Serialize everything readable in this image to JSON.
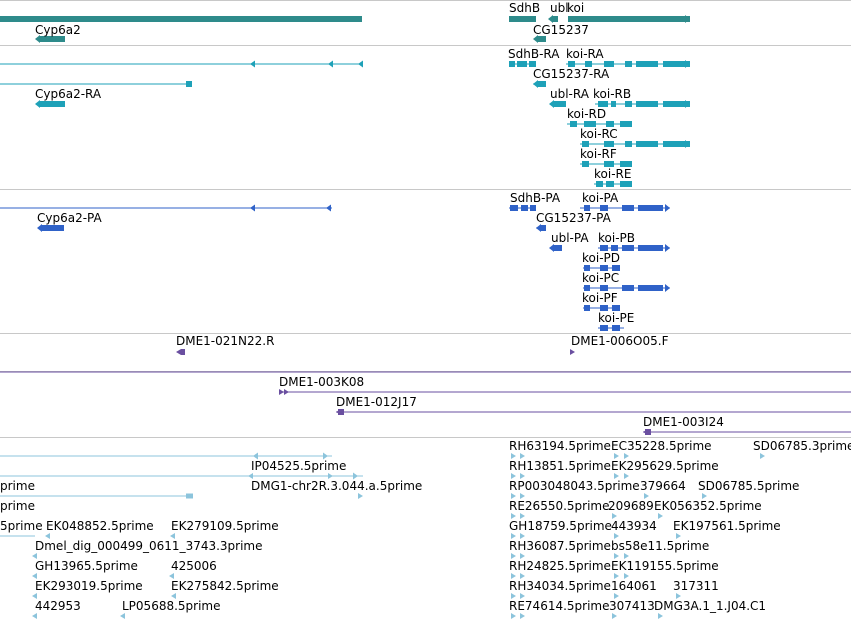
{
  "colors": {
    "gene": "#2e8b8b",
    "transcript": "#1ea1b8",
    "protein": "#2f62c8",
    "clone": "#6a4fa0",
    "est": "#8cc4dc",
    "divider": "#c8c8c8"
  },
  "tracks": {
    "genes": {
      "features": [
        {
          "id": "g-top",
          "label": ""
        },
        {
          "id": "g-cyp6a2",
          "label": "Cyp6a2"
        },
        {
          "id": "g-sdhb",
          "label": "SdhB"
        },
        {
          "id": "g-ubl",
          "label": "ubl"
        },
        {
          "id": "g-koi",
          "label": "koi"
        },
        {
          "id": "g-cg15237",
          "label": "CG15237"
        }
      ]
    },
    "transcripts": {
      "features": [
        {
          "id": "t-long1",
          "label": ""
        },
        {
          "id": "t-long2",
          "label": ""
        },
        {
          "id": "t-cyp6a2",
          "label": "Cyp6a2-RA"
        },
        {
          "id": "t-sdhb",
          "label": "SdhB-RA"
        },
        {
          "id": "t-koira",
          "label": "koi-RA"
        },
        {
          "id": "t-cg15237",
          "label": "CG15237-RA"
        },
        {
          "id": "t-ublra",
          "label": "ubl-RA"
        },
        {
          "id": "t-koirb",
          "label": "koi-RB"
        },
        {
          "id": "t-koird",
          "label": "koi-RD"
        },
        {
          "id": "t-koirc",
          "label": "koi-RC"
        },
        {
          "id": "t-koirf",
          "label": "koi-RF"
        },
        {
          "id": "t-koire",
          "label": "koi-RE"
        }
      ]
    },
    "proteins": {
      "features": [
        {
          "id": "p-long",
          "label": ""
        },
        {
          "id": "p-cyp6a2",
          "label": "Cyp6a2-PA"
        },
        {
          "id": "p-sdhb",
          "label": "SdhB-PA"
        },
        {
          "id": "p-koipa",
          "label": "koi-PA"
        },
        {
          "id": "p-cg15237",
          "label": "CG15237-PA"
        },
        {
          "id": "p-ublpa",
          "label": "ubl-PA"
        },
        {
          "id": "p-koipb",
          "label": "koi-PB"
        },
        {
          "id": "p-koipd",
          "label": "koi-PD"
        },
        {
          "id": "p-koipc",
          "label": "koi-PC"
        },
        {
          "id": "p-koipf",
          "label": "koi-PF"
        },
        {
          "id": "p-koipe",
          "label": "koi-PE"
        }
      ]
    },
    "clone_ends": {
      "features": [
        {
          "id": "c1",
          "label": "DME1-021N22.R"
        },
        {
          "id": "c2",
          "label": "DME1-006O05.F"
        }
      ]
    },
    "clones": {
      "features": [
        {
          "id": "cl-top",
          "label": ""
        },
        {
          "id": "cl1",
          "label": "DME1-003K08"
        },
        {
          "id": "cl2",
          "label": "DME1-012J17"
        },
        {
          "id": "cl3",
          "label": "DME1-003I24"
        }
      ]
    },
    "ests": {
      "features": [
        {
          "id": "e-l1",
          "label": ""
        },
        {
          "id": "e-l2",
          "label": ""
        },
        {
          "id": "e-prime1",
          "label": "prime"
        },
        {
          "id": "e-prime2",
          "label": "prime"
        },
        {
          "id": "e-prime3",
          "label": "5prime"
        },
        {
          "id": "e1",
          "label": "IP04525.5prime"
        },
        {
          "id": "e2",
          "label": "DMG1-chr2R.3.044.a.5prime"
        },
        {
          "id": "e3",
          "label": "EK048852.5prime"
        },
        {
          "id": "e4",
          "label": "EK279109.5prime"
        },
        {
          "id": "e5",
          "label": "Dmel_dig_000499_0611_3743.3prime"
        },
        {
          "id": "e6",
          "label": "GH13965.5prime"
        },
        {
          "id": "e7",
          "label": "425006"
        },
        {
          "id": "e8",
          "label": "EK293019.5prime"
        },
        {
          "id": "e9",
          "label": "EK275842.5prime"
        },
        {
          "id": "e10",
          "label": "442953"
        },
        {
          "id": "e11",
          "label": "LP05688.5prime"
        },
        {
          "id": "e12",
          "label": "RH63194.5prime"
        },
        {
          "id": "e13",
          "label": "EC35228.5prime"
        },
        {
          "id": "e14",
          "label": "SD06785.3prime"
        },
        {
          "id": "e15",
          "label": "RH13851.5prime"
        },
        {
          "id": "e16",
          "label": "EK295629.5prime"
        },
        {
          "id": "e17",
          "label": "RP003048043.5prime"
        },
        {
          "id": "e18",
          "label": "379664"
        },
        {
          "id": "e19",
          "label": "SD06785.5prime"
        },
        {
          "id": "e20",
          "label": "RE26550.5prime"
        },
        {
          "id": "e21",
          "label": "209689"
        },
        {
          "id": "e22",
          "label": "EK056352.5prime"
        },
        {
          "id": "e23",
          "label": "GH18759.5prime"
        },
        {
          "id": "e24",
          "label": "443934"
        },
        {
          "id": "e25",
          "label": "EK197561.5prime"
        },
        {
          "id": "e26",
          "label": "RH36087.5prime"
        },
        {
          "id": "e27",
          "label": "bs58e11.5prime"
        },
        {
          "id": "e28",
          "label": "RH24825.5prime"
        },
        {
          "id": "e29",
          "label": "EK119155.5prime"
        },
        {
          "id": "e30",
          "label": "RH34034.5prime"
        },
        {
          "id": "e31",
          "label": "164061"
        },
        {
          "id": "e32",
          "label": "317311"
        },
        {
          "id": "e33",
          "label": "RE74614.5prime"
        },
        {
          "id": "e34",
          "label": "307413"
        },
        {
          "id": "e35",
          "label": "DMG3A.1_1.J04.C1"
        }
      ]
    }
  }
}
